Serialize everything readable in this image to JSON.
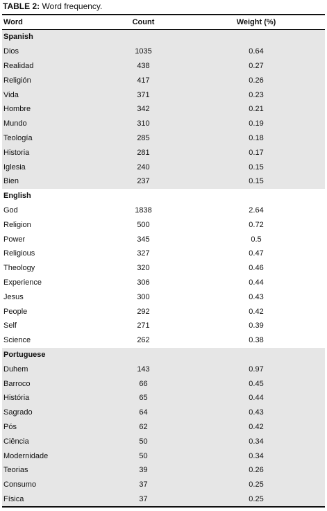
{
  "caption": {
    "label": "TABLE 2:",
    "text": " Word frequency."
  },
  "headers": {
    "word": "Word",
    "count": "Count",
    "weight": "Weight (%)"
  },
  "groups": [
    {
      "name": "Spanish",
      "rows": [
        [
          "Dios",
          "1035",
          "0.64"
        ],
        [
          "Realidad",
          "438",
          "0.27"
        ],
        [
          "Religión",
          "417",
          "0.26"
        ],
        [
          "Vida",
          "371",
          "0.23"
        ],
        [
          "Hombre",
          "342",
          "0.21"
        ],
        [
          "Mundo",
          "310",
          "0.19"
        ],
        [
          "Teología",
          "285",
          "0.18"
        ],
        [
          "Historia",
          "281",
          "0.17"
        ],
        [
          "Iglesia",
          "240",
          "0.15"
        ],
        [
          "Bien",
          "237",
          "0.15"
        ]
      ]
    },
    {
      "name": "English",
      "rows": [
        [
          "God",
          "1838",
          "2.64"
        ],
        [
          "Religion",
          "500",
          "0.72"
        ],
        [
          "Power",
          "345",
          "0.5"
        ],
        [
          "Religious",
          "327",
          "0.47"
        ],
        [
          "Theology",
          "320",
          "0.46"
        ],
        [
          "Experience",
          "306",
          "0.44"
        ],
        [
          "Jesus",
          "300",
          "0.43"
        ],
        [
          "People",
          "292",
          "0.42"
        ],
        [
          "Self",
          "271",
          "0.39"
        ],
        [
          "Science",
          "262",
          "0.38"
        ]
      ]
    },
    {
      "name": "Portuguese",
      "rows": [
        [
          "Duhem",
          "143",
          "0.97"
        ],
        [
          "Barroco",
          "66",
          "0.45"
        ],
        [
          "História",
          "65",
          "0.44"
        ],
        [
          "Sagrado",
          "64",
          "0.43"
        ],
        [
          "Pós",
          "62",
          "0.42"
        ],
        [
          "Ciência",
          "50",
          "0.34"
        ],
        [
          "Modernidade",
          "50",
          "0.34"
        ],
        [
          "Teorias",
          "39",
          "0.26"
        ],
        [
          "Consumo",
          "37",
          "0.25"
        ],
        [
          "Física",
          "37",
          "0.25"
        ]
      ]
    }
  ],
  "colors": {
    "shade": "#e6e6e6",
    "rule": "#111111",
    "text": "#111111"
  }
}
